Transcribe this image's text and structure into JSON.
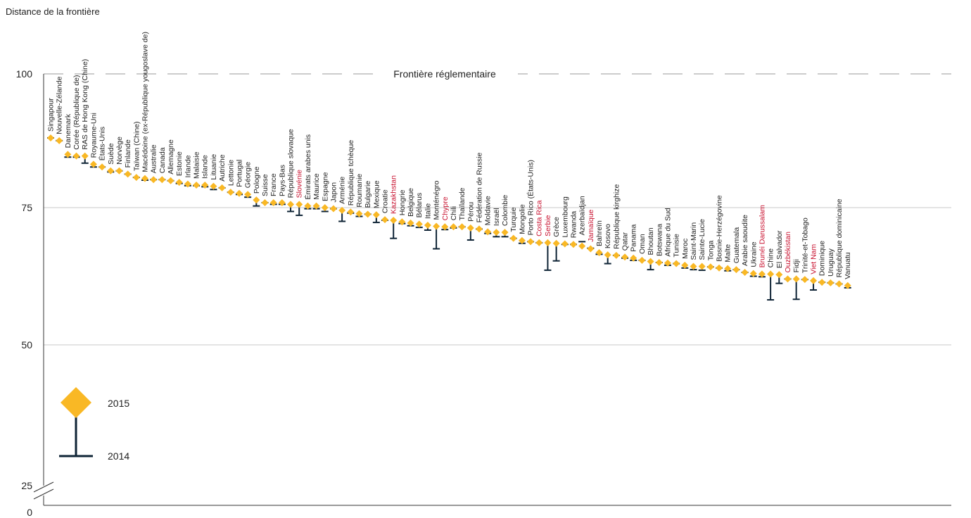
{
  "chart_data": {
    "type": "scatter",
    "ylabel": "Distance de la frontière",
    "frontier_label": "Frontière réglementaire",
    "frontier_value": 100,
    "y_ticks": [
      100,
      75,
      50,
      25,
      0
    ],
    "ylim": [
      0,
      100
    ],
    "y_axis_break": "between 0 and 25",
    "legend": [
      {
        "label": "2015",
        "symbol": "diamond"
      },
      {
        "label": "2014",
        "symbol": "bar"
      }
    ],
    "colors": {
      "2015": "#f9b825",
      "2014": "#0f2436",
      "highlight": "#c8102e",
      "frontier": "#9a9a9a"
    },
    "grid": true,
    "series": [
      {
        "name": "2015",
        "values": [
          87.7,
          87.2,
          84.7,
          84.4,
          84.4,
          82.9,
          82.4,
          81.7,
          81.7,
          81.1,
          80.5,
          80.3,
          80.1,
          80.1,
          79.9,
          79.6,
          79.3,
          79.1,
          79.1,
          78.9,
          78.6,
          77.8,
          77.6,
          77.4,
          76.4,
          75.9,
          75.9,
          75.9,
          75.6,
          75.6,
          75.3,
          75.3,
          75.0,
          74.8,
          74.5,
          74.2,
          73.9,
          73.8,
          73.7,
          72.8,
          72.7,
          72.4,
          72.2,
          72.0,
          71.8,
          71.6,
          71.5,
          71.5,
          71.5,
          71.3,
          71.1,
          70.6,
          70.5,
          70.5,
          69.4,
          69.0,
          68.8,
          68.6,
          68.6,
          68.5,
          68.4,
          68.3,
          68.0,
          67.5,
          66.8,
          66.4,
          66.3,
          66.0,
          65.8,
          65.4,
          65.2,
          65.0,
          64.9,
          64.8,
          64.5,
          64.3,
          64.3,
          64.2,
          64.0,
          63.9,
          63.7,
          63.2,
          63.0,
          62.9,
          62.9,
          62.8,
          62.0,
          62.0,
          61.9,
          61.7,
          61.4,
          61.3,
          61.1,
          60.8
        ]
      },
      {
        "name": "2014",
        "values": [
          87.7,
          87.2,
          84.2,
          84.2,
          83.1,
          82.4,
          82.4,
          81.5,
          81.7,
          81.1,
          80.5,
          80.0,
          80.1,
          80.1,
          79.9,
          79.4,
          79.0,
          79.0,
          78.8,
          78.3,
          78.6,
          77.8,
          77.4,
          76.9,
          75.3,
          75.9,
          75.6,
          75.6,
          74.3,
          73.6,
          74.8,
          74.8,
          74.3,
          74.8,
          72.5,
          74.0,
          73.4,
          73.8,
          72.3,
          72.7,
          69.4,
          72.1,
          71.7,
          71.4,
          70.9,
          67.5,
          71.0,
          71.3,
          71.5,
          69.1,
          71.1,
          70.3,
          69.7,
          69.7,
          69.4,
          68.5,
          68.8,
          68.6,
          63.6,
          65.3,
          68.3,
          68.3,
          68.8,
          67.6,
          66.5,
          64.8,
          66.3,
          65.8,
          65.4,
          65.4,
          63.7,
          65.0,
          64.5,
          64.8,
          64.0,
          63.7,
          63.6,
          64.2,
          64.0,
          63.5,
          63.7,
          63.2,
          62.5,
          62.4,
          58.2,
          61.2,
          62.0,
          58.3,
          61.9,
          60.0,
          61.4,
          61.3,
          61.1,
          60.4
        ]
      }
    ],
    "categories": [
      {
        "name": "Singapour",
        "hl": false
      },
      {
        "name": "Nouvelle-Zélande",
        "hl": false
      },
      {
        "name": "Danemark",
        "hl": false
      },
      {
        "name": "Corée (République de)",
        "hl": false
      },
      {
        "name": "RAS de Hong Kong (Chine)",
        "hl": false
      },
      {
        "name": "Royaume-Uni",
        "hl": false
      },
      {
        "name": "États-Unis",
        "hl": false
      },
      {
        "name": "Suède",
        "hl": false
      },
      {
        "name": "Norvège",
        "hl": false
      },
      {
        "name": "Finlande",
        "hl": false
      },
      {
        "name": "Taïwan (Chine)",
        "hl": false
      },
      {
        "name": "Macédoine (ex-République yougoslave de)",
        "hl": false
      },
      {
        "name": "Australie",
        "hl": false
      },
      {
        "name": "Canada",
        "hl": false
      },
      {
        "name": "Allemagne",
        "hl": false
      },
      {
        "name": "Estonie",
        "hl": false
      },
      {
        "name": "Irlande",
        "hl": false
      },
      {
        "name": "Malaisie",
        "hl": false
      },
      {
        "name": "Islande",
        "hl": false
      },
      {
        "name": "Lituanie",
        "hl": false
      },
      {
        "name": "Autriche",
        "hl": false
      },
      {
        "name": "Lettonie",
        "hl": false
      },
      {
        "name": "Portugal",
        "hl": false
      },
      {
        "name": "Géorgie",
        "hl": false
      },
      {
        "name": "Pologne",
        "hl": false
      },
      {
        "name": "Suisse",
        "hl": false
      },
      {
        "name": "France",
        "hl": false
      },
      {
        "name": "Pays-Bas",
        "hl": false
      },
      {
        "name": "République slovaque",
        "hl": false
      },
      {
        "name": "Slovénie",
        "hl": true
      },
      {
        "name": "Émirats arabes unis",
        "hl": false
      },
      {
        "name": "Maurice",
        "hl": false
      },
      {
        "name": "Espagne",
        "hl": false
      },
      {
        "name": "Japon",
        "hl": false
      },
      {
        "name": "Arménie",
        "hl": false
      },
      {
        "name": "République tchèque",
        "hl": false
      },
      {
        "name": "Roumanie",
        "hl": false
      },
      {
        "name": "Bulgarie",
        "hl": false
      },
      {
        "name": "Mexique",
        "hl": false
      },
      {
        "name": "Croatie",
        "hl": false
      },
      {
        "name": "Kazakhstan",
        "hl": true
      },
      {
        "name": "Hongrie",
        "hl": false
      },
      {
        "name": "Belgique",
        "hl": false
      },
      {
        "name": "Bélarus",
        "hl": false
      },
      {
        "name": "Italie",
        "hl": false
      },
      {
        "name": "Monténégro",
        "hl": false
      },
      {
        "name": "Chypre",
        "hl": true
      },
      {
        "name": "Chili",
        "hl": false
      },
      {
        "name": "Thaïlande",
        "hl": false
      },
      {
        "name": "Pérou",
        "hl": false
      },
      {
        "name": "Fédération de Russie",
        "hl": false
      },
      {
        "name": "Moldavie",
        "hl": false
      },
      {
        "name": "Israël",
        "hl": false
      },
      {
        "name": "Colombie",
        "hl": false
      },
      {
        "name": "Turquie",
        "hl": false
      },
      {
        "name": "Mongolie",
        "hl": false
      },
      {
        "name": "Porto Rico (États-Unis)",
        "hl": false
      },
      {
        "name": "Costa Rica",
        "hl": true
      },
      {
        "name": "Serbie",
        "hl": true
      },
      {
        "name": "Grèce",
        "hl": false
      },
      {
        "name": "Luxembourg",
        "hl": false
      },
      {
        "name": "Rwanda",
        "hl": false
      },
      {
        "name": "Azerbaïdjan",
        "hl": false
      },
      {
        "name": "Jamaïque",
        "hl": true
      },
      {
        "name": "Bahreïn",
        "hl": false
      },
      {
        "name": "Kosovo",
        "hl": false
      },
      {
        "name": "République kirghize",
        "hl": false
      },
      {
        "name": "Qatar",
        "hl": false
      },
      {
        "name": "Panama",
        "hl": false
      },
      {
        "name": "Oman",
        "hl": false
      },
      {
        "name": "Bhoutan",
        "hl": false
      },
      {
        "name": "Botswana",
        "hl": false
      },
      {
        "name": "Afrique du Sud",
        "hl": false
      },
      {
        "name": "Tunisie",
        "hl": false
      },
      {
        "name": "Maroc",
        "hl": false
      },
      {
        "name": "Saint-Marin",
        "hl": false
      },
      {
        "name": "Sainte-Lucie",
        "hl": false
      },
      {
        "name": "Tonga",
        "hl": false
      },
      {
        "name": "Bosnie-Herzégovine",
        "hl": false
      },
      {
        "name": "Malte",
        "hl": false
      },
      {
        "name": "Guatemala",
        "hl": false
      },
      {
        "name": "Arabie saoudite",
        "hl": false
      },
      {
        "name": "Ukraine",
        "hl": false
      },
      {
        "name": "Brunéi Darussalam",
        "hl": true
      },
      {
        "name": "Chine",
        "hl": false
      },
      {
        "name": "El Salvador",
        "hl": false
      },
      {
        "name": "Ouzbékistan",
        "hl": true
      },
      {
        "name": "Fidji",
        "hl": false
      },
      {
        "name": "Trinité-et-Tobago",
        "hl": false
      },
      {
        "name": "Viet Nam",
        "hl": true
      },
      {
        "name": "Dominique",
        "hl": false
      },
      {
        "name": "Uruguay",
        "hl": false
      },
      {
        "name": "République dominicaine",
        "hl": false
      },
      {
        "name": "Vanuatu",
        "hl": false
      }
    ]
  }
}
